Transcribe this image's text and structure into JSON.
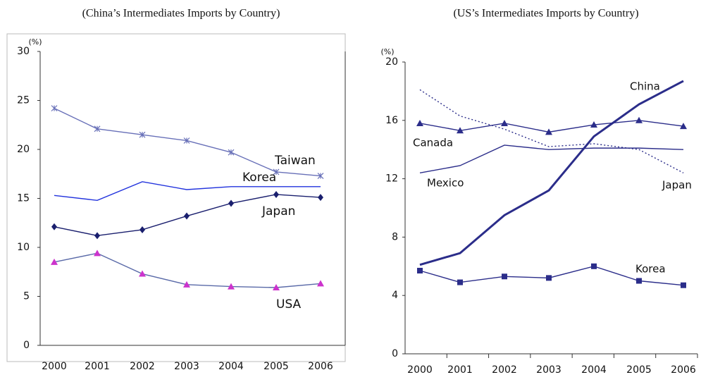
{
  "chart_data": [
    {
      "type": "line",
      "title": "(China’s Intermediates Imports by Country)",
      "ylabel": "(%)",
      "categories": [
        "2000",
        "2001",
        "2002",
        "2003",
        "2004",
        "2005",
        "2006"
      ],
      "ylim": [
        0,
        30
      ],
      "yticks": [
        0,
        5,
        10,
        15,
        20,
        25,
        30
      ],
      "series": [
        {
          "name": "Taiwan",
          "color": "#6870b8",
          "marker": "x",
          "values": [
            24.2,
            22.1,
            21.5,
            20.9,
            19.7,
            17.7,
            17.3
          ]
        },
        {
          "name": "Korea",
          "color": "#2233dd",
          "marker": "none",
          "values": [
            15.3,
            14.8,
            16.7,
            15.9,
            16.2,
            16.2,
            16.2
          ]
        },
        {
          "name": "Japan",
          "color": "#1a1f6e",
          "marker": "diamond",
          "values": [
            12.1,
            11.2,
            11.8,
            13.2,
            14.5,
            15.4,
            15.1
          ]
        },
        {
          "name": "USA",
          "color": "#5a6aa8",
          "marker": "triangle",
          "marker_color": "#cc33cc",
          "values": [
            8.5,
            9.4,
            7.3,
            6.2,
            6.0,
            5.9,
            6.3
          ]
        }
      ]
    },
    {
      "type": "line",
      "title": "(US’s Intermediates Imports by Country)",
      "ylabel": "(%)",
      "categories": [
        "2000",
        "2001",
        "2002",
        "2003",
        "2004",
        "2005",
        "2006"
      ],
      "ylim": [
        0,
        20
      ],
      "yticks": [
        0,
        4,
        8,
        12,
        16,
        20
      ],
      "series": [
        {
          "name": "China",
          "color": "#2b2d8a",
          "marker": "none",
          "width": 3,
          "values": [
            6.1,
            6.9,
            9.5,
            11.2,
            14.9,
            17.1,
            18.7
          ]
        },
        {
          "name": "Canada",
          "color": "#2b2d8a",
          "marker": "triangle",
          "values": [
            15.8,
            15.3,
            15.8,
            15.2,
            15.7,
            16.0,
            15.6
          ]
        },
        {
          "name": "Mexico",
          "color": "#2b2d8a",
          "marker": "none",
          "values": [
            12.4,
            12.9,
            14.3,
            14.0,
            14.1,
            14.1,
            14.0
          ]
        },
        {
          "name": "Japan",
          "color": "#2b2d8a",
          "marker": "none",
          "dash": true,
          "values": [
            18.1,
            16.3,
            15.4,
            14.2,
            14.4,
            14.0,
            12.4
          ]
        },
        {
          "name": "Korea",
          "color": "#2b2d8a",
          "marker": "square",
          "values": [
            5.7,
            4.9,
            5.3,
            5.2,
            6.0,
            5.0,
            4.7
          ]
        }
      ]
    }
  ]
}
